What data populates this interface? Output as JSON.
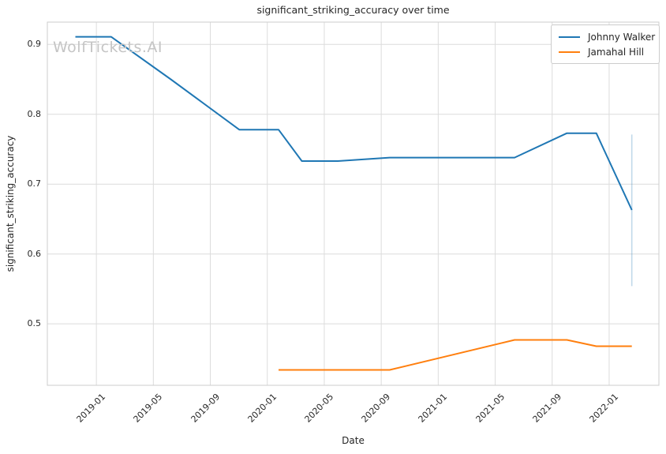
{
  "watermark": "WolfTickets.AI",
  "chart_data": {
    "type": "line",
    "title": "significant_striking_accuracy over time",
    "xlabel": "Date",
    "ylabel": "significant_striking_accuracy",
    "x_tick_labels": [
      "2019-01",
      "2019-05",
      "2019-09",
      "2020-01",
      "2020-05",
      "2020-09",
      "2021-01",
      "2021-05",
      "2021-09",
      "2022-01"
    ],
    "y_tick_labels": [
      "0.5",
      "0.6",
      "0.7",
      "0.8",
      "0.9"
    ],
    "y_tick_values": [
      0.5,
      0.6,
      0.7,
      0.8,
      0.9
    ],
    "x_range": [
      "2018-09-18",
      "2022-04-16"
    ],
    "ylim": [
      0.412,
      0.932
    ],
    "grid": true,
    "legend_position": "upper right",
    "series": [
      {
        "name": "Johnny Walker",
        "color": "#1f77b4",
        "points": [
          [
            "2018-11-17",
            0.911
          ],
          [
            "2019-02-02",
            0.911
          ],
          [
            "2019-06-08",
            0.85
          ],
          [
            "2019-11-02",
            0.778
          ],
          [
            "2020-01-25",
            0.778
          ],
          [
            "2020-03-14",
            0.733
          ],
          [
            "2020-05-30",
            0.733
          ],
          [
            "2020-09-19",
            0.738
          ],
          [
            "2021-06-12",
            0.738
          ],
          [
            "2021-10-02",
            0.773
          ],
          [
            "2021-12-04",
            0.773
          ],
          [
            "2022-02-19",
            0.663
          ]
        ]
      },
      {
        "name": "Jamahal Hill",
        "color": "#ff7f0e",
        "points": [
          [
            "2020-01-25",
            0.434
          ],
          [
            "2020-03-14",
            0.434
          ],
          [
            "2020-05-30",
            0.434
          ],
          [
            "2020-09-19",
            0.434
          ],
          [
            "2021-06-12",
            0.477
          ],
          [
            "2021-10-02",
            0.477
          ],
          [
            "2021-12-04",
            0.468
          ],
          [
            "2022-02-19",
            0.468
          ]
        ]
      }
    ],
    "error_bar": {
      "series": "Johnny Walker",
      "date": "2022-02-19",
      "low": 0.554,
      "high": 0.771,
      "color": "#1f77b4",
      "opacity": 0.28
    },
    "style": {
      "grid_color": "#dcdcdc",
      "spine_color": "#cccccc",
      "background": "#ffffff",
      "line_width": 2
    }
  }
}
